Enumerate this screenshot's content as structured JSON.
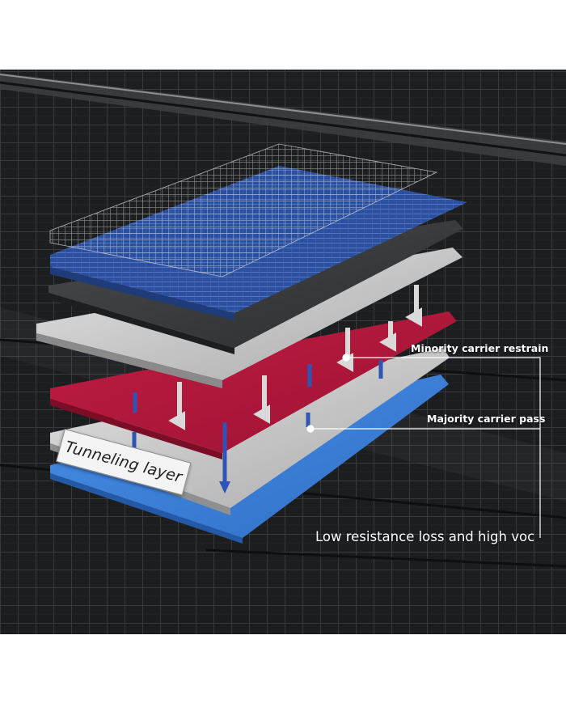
{
  "labels": {
    "minority": "Minority carrier restrain",
    "majority": "Majority carrier pass",
    "low_resistance": "Low resistance loss and high voc",
    "tunneling": "Tunneling layer"
  },
  "colors": {
    "background_panel": "#1d1f21",
    "cell_layer_blue": "#2b4f9e",
    "red_layer": "#b0173a",
    "silver_layer": "#c9c9c9",
    "bottom_blue_layer": "#3a7fd6",
    "down_arrow": "#d9d9d9",
    "carrier_arrow": "#2d55b5",
    "leader_line": "#ffffff"
  }
}
